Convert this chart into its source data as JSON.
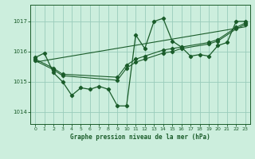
{
  "title": "Graphe pression niveau de la mer (hPa)",
  "bg_color": "#cceedd",
  "grid_color": "#99ccbb",
  "line_color": "#1a5c2a",
  "xlim": [
    -0.5,
    23.5
  ],
  "ylim": [
    1013.6,
    1017.55
  ],
  "yticks": [
    1014,
    1015,
    1016,
    1017
  ],
  "xticks": [
    0,
    1,
    2,
    3,
    4,
    5,
    6,
    7,
    8,
    9,
    10,
    11,
    12,
    13,
    14,
    15,
    16,
    17,
    18,
    19,
    20,
    21,
    22,
    23
  ],
  "main_x": [
    0,
    1,
    2,
    3,
    4,
    5,
    6,
    7,
    8,
    9,
    10,
    11,
    12,
    13,
    14,
    15,
    16,
    17,
    18,
    19,
    20,
    21,
    22,
    23
  ],
  "main_y": [
    1015.8,
    1015.95,
    1015.3,
    1015.0,
    1014.55,
    1014.8,
    1014.75,
    1014.85,
    1014.75,
    1014.2,
    1014.2,
    1016.55,
    1016.1,
    1017.0,
    1017.1,
    1016.35,
    1016.15,
    1015.85,
    1015.9,
    1015.85,
    1016.2,
    1016.3,
    1017.0,
    1017.0
  ],
  "line2_x": [
    0,
    2,
    3,
    9,
    10,
    11,
    12,
    14,
    15,
    16,
    19,
    20,
    22,
    23
  ],
  "line2_y": [
    1015.75,
    1015.45,
    1015.25,
    1015.15,
    1015.55,
    1015.75,
    1015.85,
    1016.05,
    1016.1,
    1016.15,
    1016.3,
    1016.4,
    1016.8,
    1016.95
  ],
  "line3_x": [
    0,
    2,
    3,
    9,
    10,
    11,
    12,
    14,
    15,
    16,
    19,
    20,
    22,
    23
  ],
  "line3_y": [
    1015.7,
    1015.4,
    1015.2,
    1015.05,
    1015.45,
    1015.65,
    1015.75,
    1015.95,
    1016.0,
    1016.1,
    1016.25,
    1016.35,
    1016.75,
    1016.9
  ],
  "trend_x": [
    0,
    23
  ],
  "trend_y": [
    1015.65,
    1016.82
  ]
}
